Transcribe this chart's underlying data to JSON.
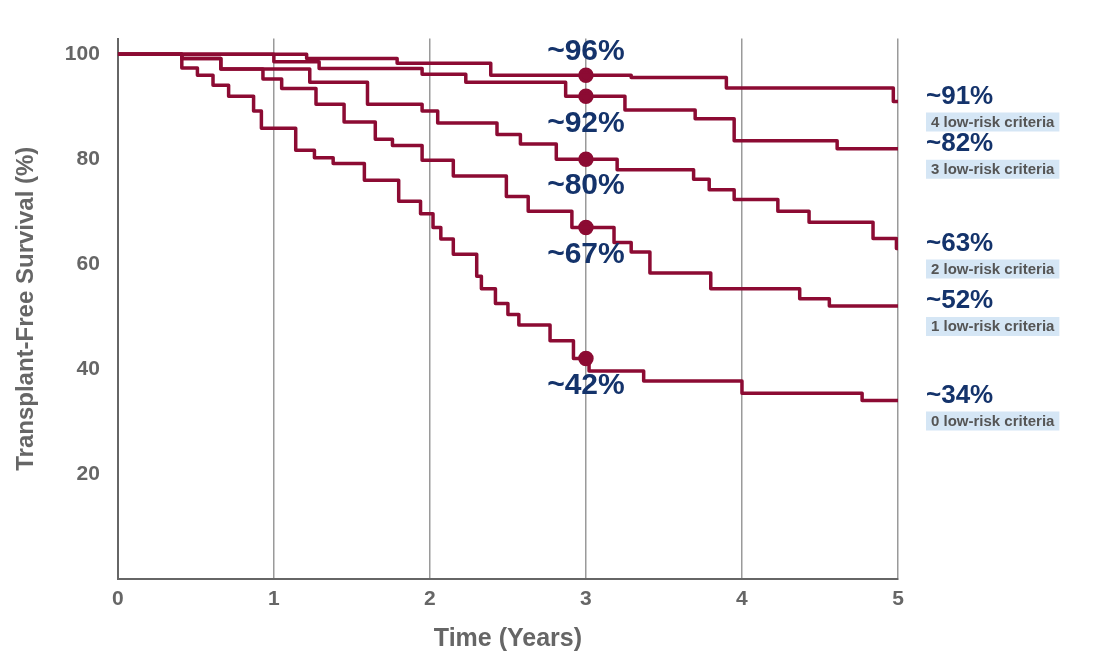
{
  "chart_data": {
    "type": "step",
    "xlabel": "Time (Years)",
    "ylabel": "Transplant-Free Survival (%)",
    "xlim": [
      0,
      5
    ],
    "xticks": [
      0,
      1,
      2,
      3,
      4,
      5
    ],
    "ylim": [
      0,
      103
    ],
    "yticks": [
      20,
      40,
      60,
      80,
      100
    ],
    "grid": "x",
    "marker": "none",
    "series": [
      {
        "name": "4 low-risk criteria",
        "color": "#8c0b33",
        "x": [
          0,
          1.21,
          1.79,
          2.39,
          3.29,
          3.9,
          4.97,
          5
        ],
        "values": [
          100,
          99.2,
          98.3,
          96,
          95.6,
          93.6,
          91,
          91
        ],
        "value_labels": [
          null,
          null,
          null,
          null,
          null,
          null,
          null,
          "~91%"
        ]
      },
      {
        "name": "3 low-risk criteria",
        "color": "#8c0b33",
        "x": [
          0,
          1.0,
          1.29,
          1.95,
          2.23,
          2.87,
          3.25,
          3.7,
          3.95,
          4.61,
          5
        ],
        "values": [
          100,
          98.6,
          97.3,
          96.2,
          94.7,
          92,
          89.4,
          87.7,
          83.5,
          82,
          82
        ],
        "value_labels": [
          null,
          null,
          null,
          null,
          null,
          null,
          null,
          null,
          null,
          null,
          "~82%"
        ]
      },
      {
        "name": "2 low-risk criteria",
        "color": "#8c0b33",
        "x": [
          0,
          0.41,
          0.66,
          1.23,
          1.6,
          1.95,
          2.05,
          2.43,
          2.58,
          2.81,
          3.2,
          3.69,
          3.79,
          3.95,
          4.23,
          4.43,
          4.84,
          4.99,
          5
        ],
        "values": [
          100,
          99.2,
          97.2,
          94.7,
          90.5,
          89.2,
          86.9,
          84.7,
          82.9,
          80,
          78.0,
          76.2,
          74.2,
          72.3,
          70.1,
          68.0,
          64.9,
          63,
          63
        ],
        "value_labels": [
          null,
          null,
          null,
          null,
          null,
          null,
          null,
          null,
          null,
          null,
          null,
          null,
          null,
          null,
          null,
          null,
          null,
          null,
          "~63%"
        ]
      },
      {
        "name": "1 low-risk criteria",
        "color": "#8c0b33",
        "x": [
          0,
          0.41,
          0.66,
          0.93,
          1.05,
          1.27,
          1.45,
          1.65,
          1.76,
          1.95,
          2.15,
          2.49,
          2.63,
          2.91,
          3.18,
          3.29,
          3.41,
          3.8,
          4.37,
          4.56,
          5
        ],
        "values": [
          100,
          99.2,
          97.2,
          95.3,
          93.5,
          90.5,
          87.1,
          83.8,
          82.6,
          79.8,
          76.8,
          72.9,
          70.1,
          67,
          64.1,
          62.3,
          58.3,
          55.3,
          53.4,
          52,
          52
        ],
        "value_labels": [
          null,
          null,
          null,
          null,
          null,
          null,
          null,
          null,
          null,
          null,
          null,
          null,
          null,
          null,
          null,
          null,
          null,
          null,
          null,
          null,
          "~52%"
        ]
      },
      {
        "name": "0 low-risk criteria",
        "color": "#8c0b33",
        "x": [
          0,
          0.41,
          0.51,
          0.61,
          0.71,
          0.87,
          0.92,
          1.14,
          1.26,
          1.38,
          1.58,
          1.8,
          1.94,
          2.02,
          2.07,
          2.15,
          2.3,
          2.33,
          2.42,
          2.5,
          2.57,
          2.77,
          2.92,
          3.02,
          3.37,
          4.0,
          4.77,
          5
        ],
        "values": [
          100,
          97.4,
          96.0,
          94.1,
          92.0,
          89.2,
          85.9,
          81.7,
          80.3,
          79.2,
          76.0,
          72.0,
          69.6,
          67.0,
          64.8,
          61.9,
          57.7,
          55.3,
          52.5,
          50.4,
          48.4,
          45.4,
          42,
          39.6,
          37.7,
          35.4,
          34,
          34
        ],
        "value_labels": [
          null,
          null,
          null,
          null,
          null,
          null,
          null,
          null,
          null,
          null,
          null,
          null,
          null,
          null,
          null,
          null,
          null,
          null,
          null,
          null,
          null,
          null,
          null,
          null,
          null,
          null,
          null,
          "~34%"
        ]
      },
      {
        "type": "scatter",
        "color": "#8c0b33",
        "marker": "circle",
        "x": [
          3,
          3,
          3,
          3,
          3
        ],
        "values": [
          96,
          92,
          80,
          67,
          42
        ],
        "value_labels": [
          "~96%",
          "~92%",
          "~80%",
          "~67%",
          "~42%"
        ]
      }
    ]
  }
}
